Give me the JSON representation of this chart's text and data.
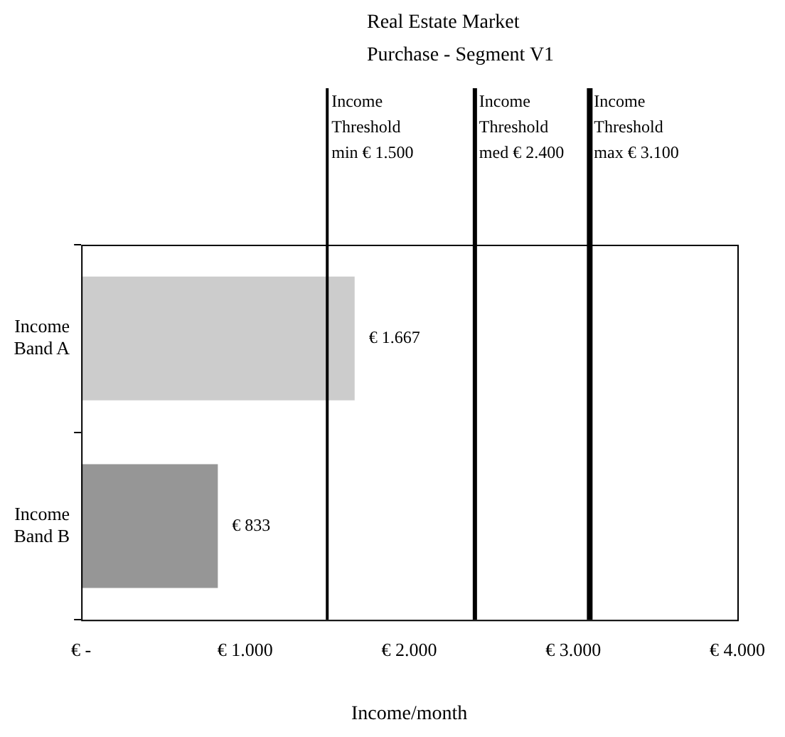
{
  "chart_data": {
    "type": "bar",
    "orientation": "horizontal",
    "title": "Real Estate Market\nPurchase - Segment V1",
    "xlabel": "Income/month",
    "categories": [
      "Income\nBand A",
      "Income\nBand B"
    ],
    "series": [
      {
        "values": [
          1667,
          833
        ],
        "colors": [
          "#cccccc",
          "#969696"
        ],
        "value_labels": [
          "€ 1.667",
          "€ 833"
        ]
      }
    ],
    "xlim": [
      0,
      4000
    ],
    "xticks": [
      {
        "value": 0,
        "label": "€ -"
      },
      {
        "value": 1000,
        "label": "€ 1.000"
      },
      {
        "value": 2000,
        "label": "€ 2.000"
      },
      {
        "value": 3000,
        "label": "€ 3.000"
      },
      {
        "value": 4000,
        "label": "€ 4.000"
      }
    ],
    "ref_lines": [
      {
        "axis": "x",
        "value": 1500,
        "label": "Income\nThreshold\nmin € 1.500",
        "color": "#000000"
      },
      {
        "axis": "x",
        "value": 2400,
        "label": "Income\nThreshold\nmed € 2.400",
        "color": "#000000"
      },
      {
        "axis": "x",
        "value": 3100,
        "label": "Income\nThreshold\nmax € 3.100",
        "color": "#000000"
      }
    ],
    "grid": false,
    "legend": false
  }
}
